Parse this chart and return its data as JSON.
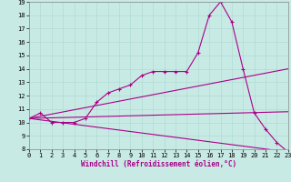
{
  "xlabel": "Windchill (Refroidissement éolien,°C)",
  "bg_color": "#c8eae4",
  "line_color": "#aa0088",
  "xlim": [
    0,
    23
  ],
  "ylim": [
    8,
    19
  ],
  "xticks": [
    0,
    1,
    2,
    3,
    4,
    5,
    6,
    7,
    8,
    9,
    10,
    11,
    12,
    13,
    14,
    15,
    16,
    17,
    18,
    19,
    20,
    21,
    22,
    23
  ],
  "yticks": [
    8,
    9,
    10,
    11,
    12,
    13,
    14,
    15,
    16,
    17,
    18,
    19
  ],
  "main_x": [
    0,
    1,
    2,
    3,
    4,
    5,
    6,
    7,
    8,
    9,
    10,
    11,
    12,
    13,
    14,
    15,
    16,
    17,
    18,
    19,
    20,
    21,
    22,
    23
  ],
  "main_y": [
    10.3,
    10.7,
    10.0,
    10.0,
    10.0,
    10.3,
    11.5,
    12.2,
    12.5,
    12.8,
    13.5,
    13.8,
    13.8,
    13.8,
    13.8,
    15.2,
    18.0,
    19.0,
    17.5,
    14.0,
    10.7,
    9.5,
    8.5,
    7.8
  ],
  "line1_x": [
    0,
    23
  ],
  "line1_y": [
    10.3,
    14.0
  ],
  "line2_x": [
    0,
    23
  ],
  "line2_y": [
    10.3,
    7.8
  ],
  "line3_x": [
    0,
    23
  ],
  "line3_y": [
    10.3,
    10.8
  ]
}
